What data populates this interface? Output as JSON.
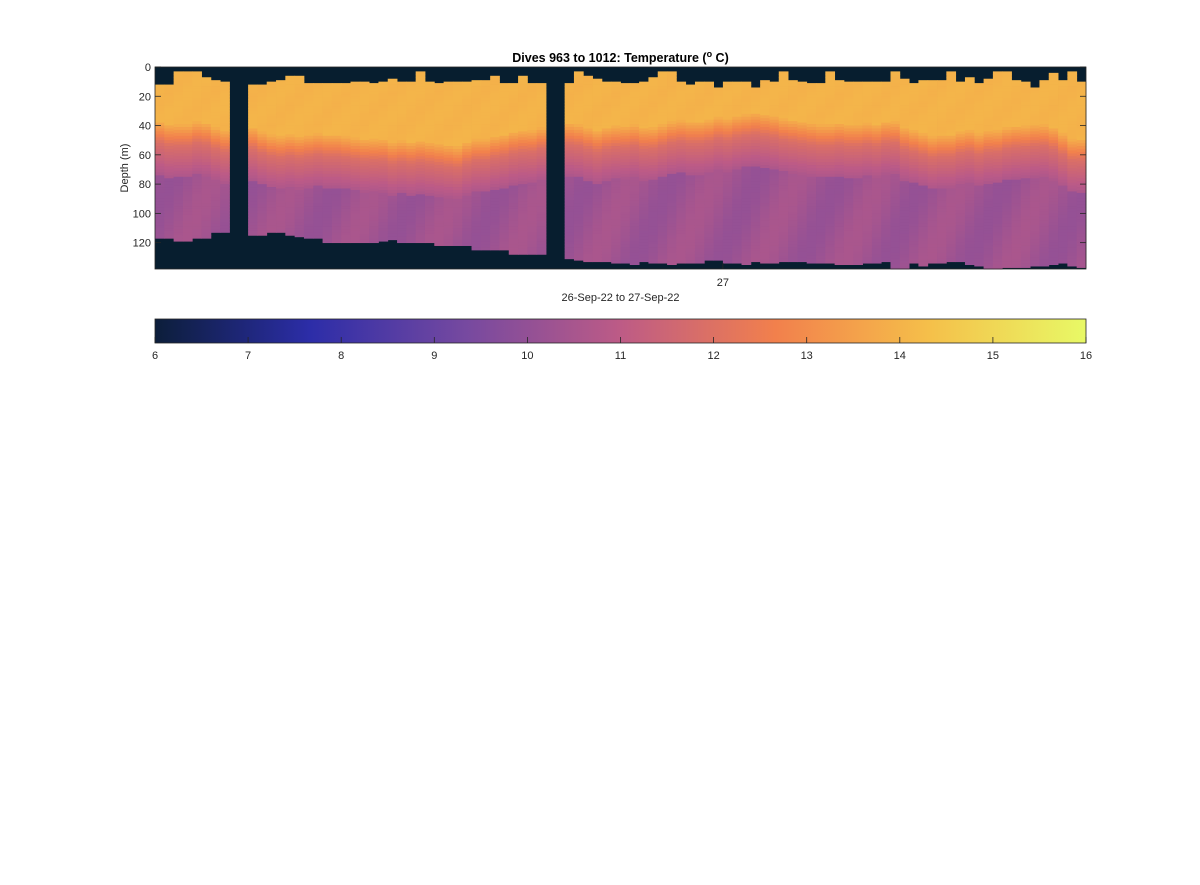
{
  "chart_data": {
    "type": "heatmap",
    "title": "Dives 963 to 1012: Temperature (",
    "title_superscript": "o",
    "title_suffix": " C)",
    "ylabel": "Depth (m)",
    "xlabel": "26-Sep-22 to 27-Sep-22",
    "x_tick_labels": [
      {
        "dive_position": 61,
        "label": "27"
      }
    ],
    "ylim": [
      0,
      138
    ],
    "y_reversed": true,
    "y_ticks": [
      0,
      20,
      40,
      60,
      80,
      100,
      120
    ],
    "grid": false,
    "n_profiles": 100,
    "gap_profiles": [
      [
        8,
        9
      ],
      [
        42,
        43
      ]
    ],
    "surface_start_depth": [
      12,
      12,
      3,
      3,
      3,
      7,
      9,
      10,
      12,
      12,
      12,
      12,
      10,
      9,
      6,
      6,
      11,
      11,
      11,
      11,
      11,
      10,
      10,
      11,
      10,
      8,
      10,
      10,
      3,
      10,
      11,
      10,
      10,
      10,
      9,
      9,
      6,
      11,
      11,
      6,
      11,
      11,
      11,
      11,
      11,
      3,
      6,
      8,
      10,
      10,
      11,
      11,
      10,
      7,
      3,
      3,
      10,
      12,
      10,
      10,
      14,
      10,
      10,
      10,
      14,
      9,
      10,
      3,
      9,
      10,
      11,
      11,
      3,
      9,
      10,
      10,
      10,
      10,
      10,
      3,
      8,
      11,
      9,
      9,
      9,
      3,
      10,
      7,
      11,
      8,
      3,
      3,
      9,
      10,
      14,
      9,
      4,
      9,
      3,
      10
    ],
    "bottom_depth": [
      117,
      117,
      119,
      119,
      117,
      117,
      113,
      113,
      113,
      113,
      115,
      115,
      113,
      113,
      115,
      116,
      117,
      117,
      120,
      120,
      120,
      120,
      120,
      120,
      119,
      118,
      120,
      120,
      120,
      120,
      122,
      122,
      122,
      122,
      125,
      125,
      125,
      125,
      128,
      128,
      128,
      128,
      128,
      128,
      131,
      132,
      133,
      133,
      133,
      134,
      134,
      135,
      133,
      134,
      134,
      135,
      134,
      134,
      134,
      132,
      132,
      134,
      134,
      135,
      133,
      134,
      134,
      133,
      133,
      133,
      134,
      134,
      134,
      135,
      135,
      135,
      134,
      134,
      133,
      138,
      138,
      134,
      136,
      134,
      134,
      133,
      133,
      135,
      136,
      138,
      138,
      137,
      137,
      137,
      136,
      136,
      135,
      134,
      136,
      137
    ],
    "thermocline_depth": [
      46,
      48,
      48,
      48,
      46,
      47,
      50,
      52,
      52,
      52,
      50,
      53,
      55,
      56,
      55,
      56,
      55,
      54,
      55,
      55,
      56,
      57,
      58,
      58,
      58,
      60,
      59,
      60,
      59,
      60,
      61,
      62,
      63,
      60,
      58,
      58,
      56,
      55,
      53,
      52,
      52,
      50,
      50,
      50,
      47,
      48,
      50,
      52,
      50,
      49,
      49,
      48,
      50,
      50,
      48,
      46,
      45,
      46,
      46,
      45,
      43,
      44,
      42,
      41,
      40,
      41,
      42,
      44,
      45,
      46,
      47,
      48,
      48,
      47,
      48,
      48,
      47,
      48,
      46,
      46,
      50,
      52,
      54,
      56,
      55,
      55,
      53,
      52,
      54,
      52,
      52,
      50,
      49,
      49,
      48,
      48,
      50,
      54,
      58,
      58
    ],
    "colorbar": {
      "min": 6,
      "max": 16,
      "tick_labels": [
        "6",
        "7",
        "8",
        "9",
        "10",
        "11",
        "12",
        "13",
        "14",
        "15",
        "16"
      ],
      "colors": [
        "#0c1e3a",
        "#2c2da8",
        "#7649a0",
        "#bd5b86",
        "#f2804c",
        "#f5c04a",
        "#e8f966"
      ]
    },
    "no_data_color": "#071e2f",
    "surface_temperature": 14,
    "deep_temperature": 10.3
  }
}
